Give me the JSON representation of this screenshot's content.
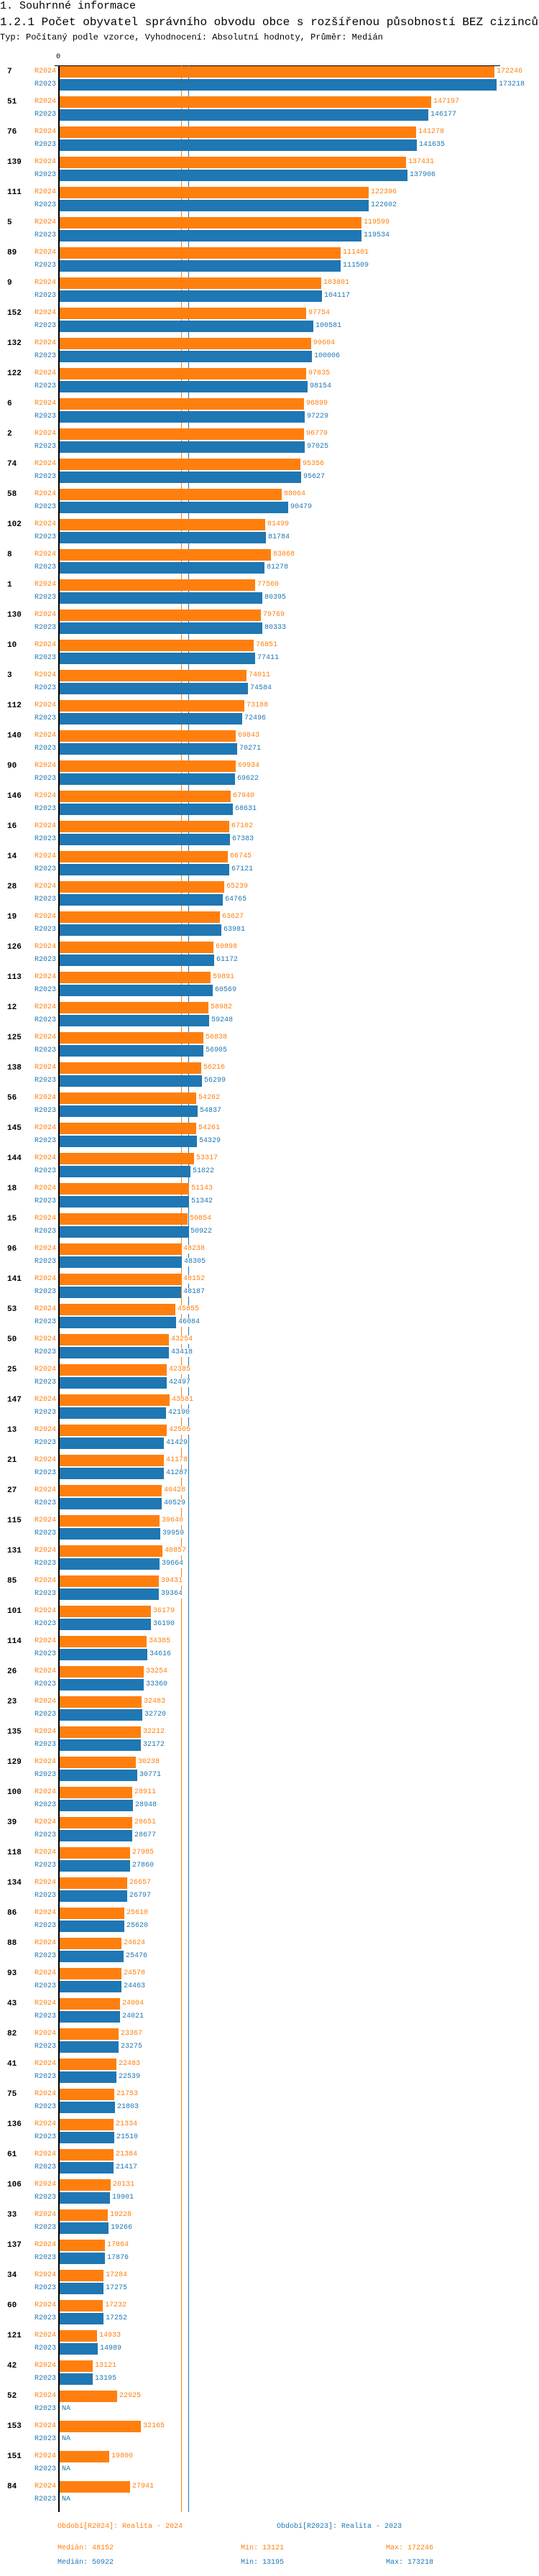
{
  "header": {
    "section": "1. Souhrnné informace",
    "title": "1.2.1 Počet obyvatel správního obvodu obce s rozšířenou působností BEZ cizinců",
    "subtitle": "Typ: Počítaný podle vzorce, Vyhodnocení: Absolutní hodnoty, Průměr: Medián"
  },
  "colors": {
    "R2024": "#ff7f0e",
    "R2023": "#1f77b4"
  },
  "chart_data": {
    "type": "bar",
    "orientation": "horizontal",
    "x_tick_labels": [
      "0"
    ],
    "series_labels": [
      "R2024",
      "R2023"
    ],
    "missing_label": "NA",
    "categories": [
      "7",
      "51",
      "76",
      "139",
      "111",
      "5",
      "89",
      "9",
      "152",
      "132",
      "122",
      "6",
      "2",
      "74",
      "58",
      "102",
      "8",
      "1",
      "130",
      "10",
      "3",
      "112",
      "140",
      "90",
      "146",
      "16",
      "14",
      "28",
      "19",
      "126",
      "113",
      "12",
      "125",
      "138",
      "56",
      "145",
      "144",
      "18",
      "15",
      "96",
      "141",
      "53",
      "50",
      "25",
      "147",
      "13",
      "21",
      "27",
      "115",
      "131",
      "85",
      "101",
      "114",
      "26",
      "23",
      "135",
      "129",
      "100",
      "39",
      "118",
      "134",
      "86",
      "88",
      "93",
      "43",
      "82",
      "41",
      "75",
      "136",
      "61",
      "106",
      "33",
      "137",
      "34",
      "60",
      "121",
      "42",
      "52",
      "153",
      "151",
      "84"
    ],
    "series": [
      {
        "name": "R2024",
        "values": [
          172246,
          147197,
          141278,
          137431,
          122396,
          119599,
          111401,
          103801,
          97754,
          99604,
          97835,
          96899,
          96770,
          95356,
          88064,
          81499,
          83868,
          77560,
          79769,
          76851,
          74011,
          73188,
          69843,
          69934,
          67940,
          67102,
          66745,
          65239,
          63627,
          60898,
          59891,
          58982,
          56838,
          56216,
          54262,
          54261,
          53317,
          51143,
          50854,
          48238,
          48152,
          45855,
          43254,
          42385,
          43581,
          42505,
          41178,
          40428,
          39640,
          40857,
          39431,
          36179,
          34385,
          33254,
          32483,
          32212,
          30238,
          28911,
          28651,
          27985,
          26657,
          25610,
          24624,
          24578,
          24004,
          23367,
          22483,
          21753,
          21334,
          21384,
          20131,
          19228,
          17864,
          17284,
          17232,
          14933,
          13121,
          22925,
          32165,
          19800,
          27941
        ]
      },
      {
        "name": "R2023",
        "values": [
          173218,
          146177,
          141635,
          137906,
          122602,
          119534,
          111509,
          104117,
          100581,
          100006,
          98154,
          97229,
          97025,
          95627,
          90479,
          81784,
          81278,
          80395,
          80333,
          77411,
          74584,
          72496,
          70271,
          69622,
          68631,
          67383,
          67121,
          64765,
          63981,
          61172,
          60569,
          59248,
          56905,
          56299,
          54837,
          54329,
          51822,
          51342,
          50922,
          48305,
          48187,
          46084,
          43418,
          42497,
          42190,
          41429,
          41287,
          40529,
          39959,
          39664,
          39364,
          36190,
          34616,
          33360,
          32720,
          32172,
          30771,
          28948,
          28677,
          27860,
          26797,
          25620,
          25476,
          24463,
          24021,
          23275,
          22539,
          21803,
          21510,
          21417,
          19901,
          19266,
          17876,
          17275,
          17252,
          14989,
          13195,
          null,
          null,
          null,
          null
        ]
      }
    ],
    "median_lines": {
      "R2024": 48152,
      "R2023": 50922
    },
    "legend": [
      {
        "text": "Období[R2024]: Realita - 2024",
        "median": "Medián: 48152",
        "min": "Min: 13121",
        "max": "Max: 172246"
      },
      {
        "text": "Období[R2023]: Realita - 2023",
        "median": "Medián: 50922",
        "min": "Min: 13195",
        "max": "Max: 173218"
      }
    ],
    "legend_placement": "bottom",
    "grid": false
  }
}
